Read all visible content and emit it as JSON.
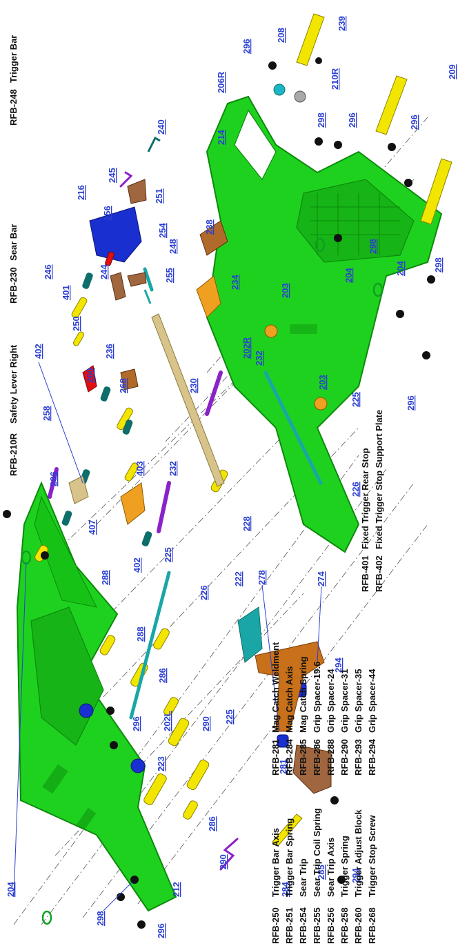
{
  "colors": {
    "frame_green": "#1fd11f",
    "frame_green_dark": "#0c8a0c",
    "pin_yellow": "#f2e600",
    "spring_purple": "#8a22c9",
    "teal": "#1aa6a6",
    "dark_teal": "#0e6f6a",
    "blue": "#1a2fd0",
    "orange": "#f0a020",
    "bronze": "#b06a2a",
    "copper": "#a0663f",
    "tan": "#d8c48a",
    "red": "#e01010",
    "black": "#111111",
    "label_blue": "#2b3fd1"
  },
  "legend_left": [
    {
      "code": "RFB-250",
      "name": "Trigger Bar Axis"
    },
    {
      "code": "RFB-251",
      "name": "Trigger Bar Spring"
    },
    {
      "code": "RFB-254",
      "name": "Sear Trip"
    },
    {
      "code": "RFB-255",
      "name": "Sear Trip Coil Spring"
    },
    {
      "code": "RFB-256",
      "name": "Sear Trip Axis"
    },
    {
      "code": "RFB-258",
      "name": "Trigger Spring"
    },
    {
      "code": "RFB-260",
      "name": "Trigger Adjust Block"
    },
    {
      "code": "RFB-268",
      "name": "Trigger Stop Screw"
    }
  ],
  "legend_mid": [
    {
      "code": "RFB-281",
      "name": "Mag Catch Weldment"
    },
    {
      "code": "RFB-284",
      "name": "Mag Catch Axis"
    },
    {
      "code": "RFB-285",
      "name": "Mag Catch Spring"
    },
    {
      "code": "RFB-286",
      "name": "Grip Spacer-19.6"
    },
    {
      "code": "RFB-288",
      "name": "Grip Spacer-24"
    },
    {
      "code": "RFB-290",
      "name": "Grip Spacer-31"
    },
    {
      "code": "RFB-293",
      "name": "Grip Spacer-35"
    },
    {
      "code": "RFB-294",
      "name": "Grip Spacer-44"
    }
  ],
  "legend_right": [
    {
      "code": "RFB-401",
      "name": "Fixed Trigger Rear Stop"
    },
    {
      "code": "RFB-402",
      "name": "Fixed Trigger Stop Support Plate"
    }
  ],
  "legend_top": [
    {
      "code": "RFB-210R",
      "name": "Safety Lever Right"
    },
    {
      "code": "RFB-230",
      "name": "Sear Bar"
    },
    {
      "code": "RFB-248",
      "name": "Trigger Bar"
    }
  ],
  "callouts": {
    "c204a": "204",
    "c298a": "298",
    "c296a": "296",
    "c212": "212",
    "c286a": "286",
    "c290a": "290",
    "c223": "223",
    "c202L": "202L",
    "c296b": "296",
    "c225a": "225",
    "c290b": "290",
    "c286b": "286",
    "c288a": "288",
    "c226a": "226",
    "c222": "222",
    "c278": "278",
    "c274": "274",
    "c294a": "294",
    "c281": "281",
    "c285": "285",
    "c294b": "294",
    "c284": "284",
    "c288b": "288",
    "c407": "407",
    "c286c": "286",
    "c258": "258",
    "c402a": "402",
    "c225b": "225",
    "c402b": "402",
    "c403": "403",
    "c232a": "232",
    "c260": "260",
    "c268": "268",
    "c236": "236",
    "c401": "401",
    "c230": "230",
    "c226b": "226",
    "c228": "228",
    "c232b": "232",
    "c256": "256",
    "c254": "254",
    "c225c": "225",
    "c203a": "203",
    "c202R": "202R",
    "c203b": "203",
    "c234": "234",
    "c238": "238",
    "c250": "250",
    "c246": "246",
    "c244": "244",
    "c255": "255",
    "c248": "248",
    "c251": "251",
    "c216": "216",
    "c245": "245",
    "c240": "240",
    "c214": "214",
    "c206R": "206R",
    "c296c": "296",
    "c208": "208",
    "c239": "239",
    "c210R": "210R",
    "c298b": "298",
    "c296d": "296",
    "c209": "209",
    "c296e": "296",
    "c204b": "204",
    "c298c": "298",
    "c204c": "204",
    "c298d": "298",
    "c296f": "296"
  }
}
